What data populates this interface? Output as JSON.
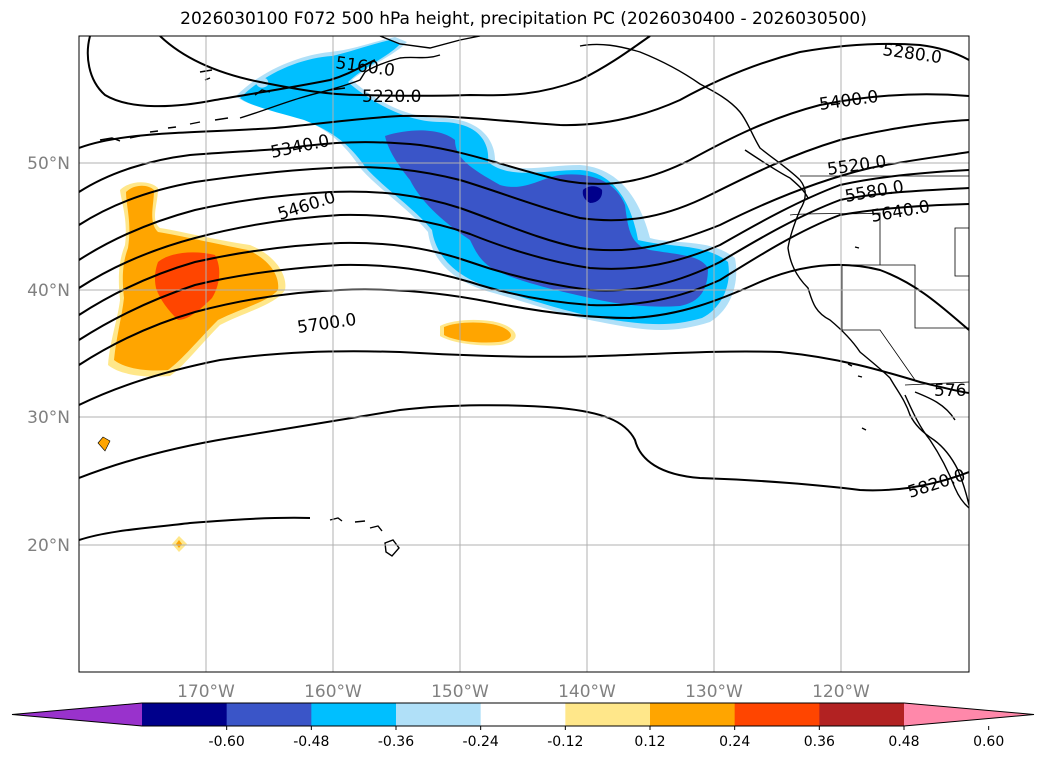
{
  "title": "2026030100 F072 500 hPa height, precipitation PC (2026030400 - 2026030500)",
  "map": {
    "lat_labels": [
      "50°N",
      "40°N",
      "30°N",
      "20°N"
    ],
    "lon_labels": [
      "170°W",
      "160°W",
      "150°W",
      "140°W",
      "130°W",
      "120°W"
    ],
    "lat_values": [
      50,
      40,
      30,
      20
    ],
    "lon_values": [
      -170,
      -160,
      -150,
      -140,
      -130,
      -120
    ],
    "extent": {
      "lon": [
        -180,
        -110
      ],
      "lat": [
        10,
        60
      ]
    }
  },
  "contours": {
    "variable": "500 hPa height",
    "line_color": "#000000",
    "labels": [
      "5160.0",
      "5220.0",
      "5280.0",
      "5340.0",
      "5400.0",
      "5460.0",
      "5520.0",
      "5580.0",
      "5640.0",
      "5700.0",
      "576",
      "5820.0"
    ]
  },
  "colorbar": {
    "ticks": [
      "-0.60",
      "-0.48",
      "-0.36",
      "-0.24",
      "-0.12",
      "0.12",
      "0.24",
      "0.36",
      "0.48",
      "0.60"
    ],
    "colors": [
      "#9932cc",
      "#00008b",
      "#3a55c8",
      "#00bfff",
      "#b0e0f8",
      "#ffffff",
      "#ffe78a",
      "#ffa500",
      "#ff4500",
      "#b22222",
      "#ff88aa"
    ]
  }
}
